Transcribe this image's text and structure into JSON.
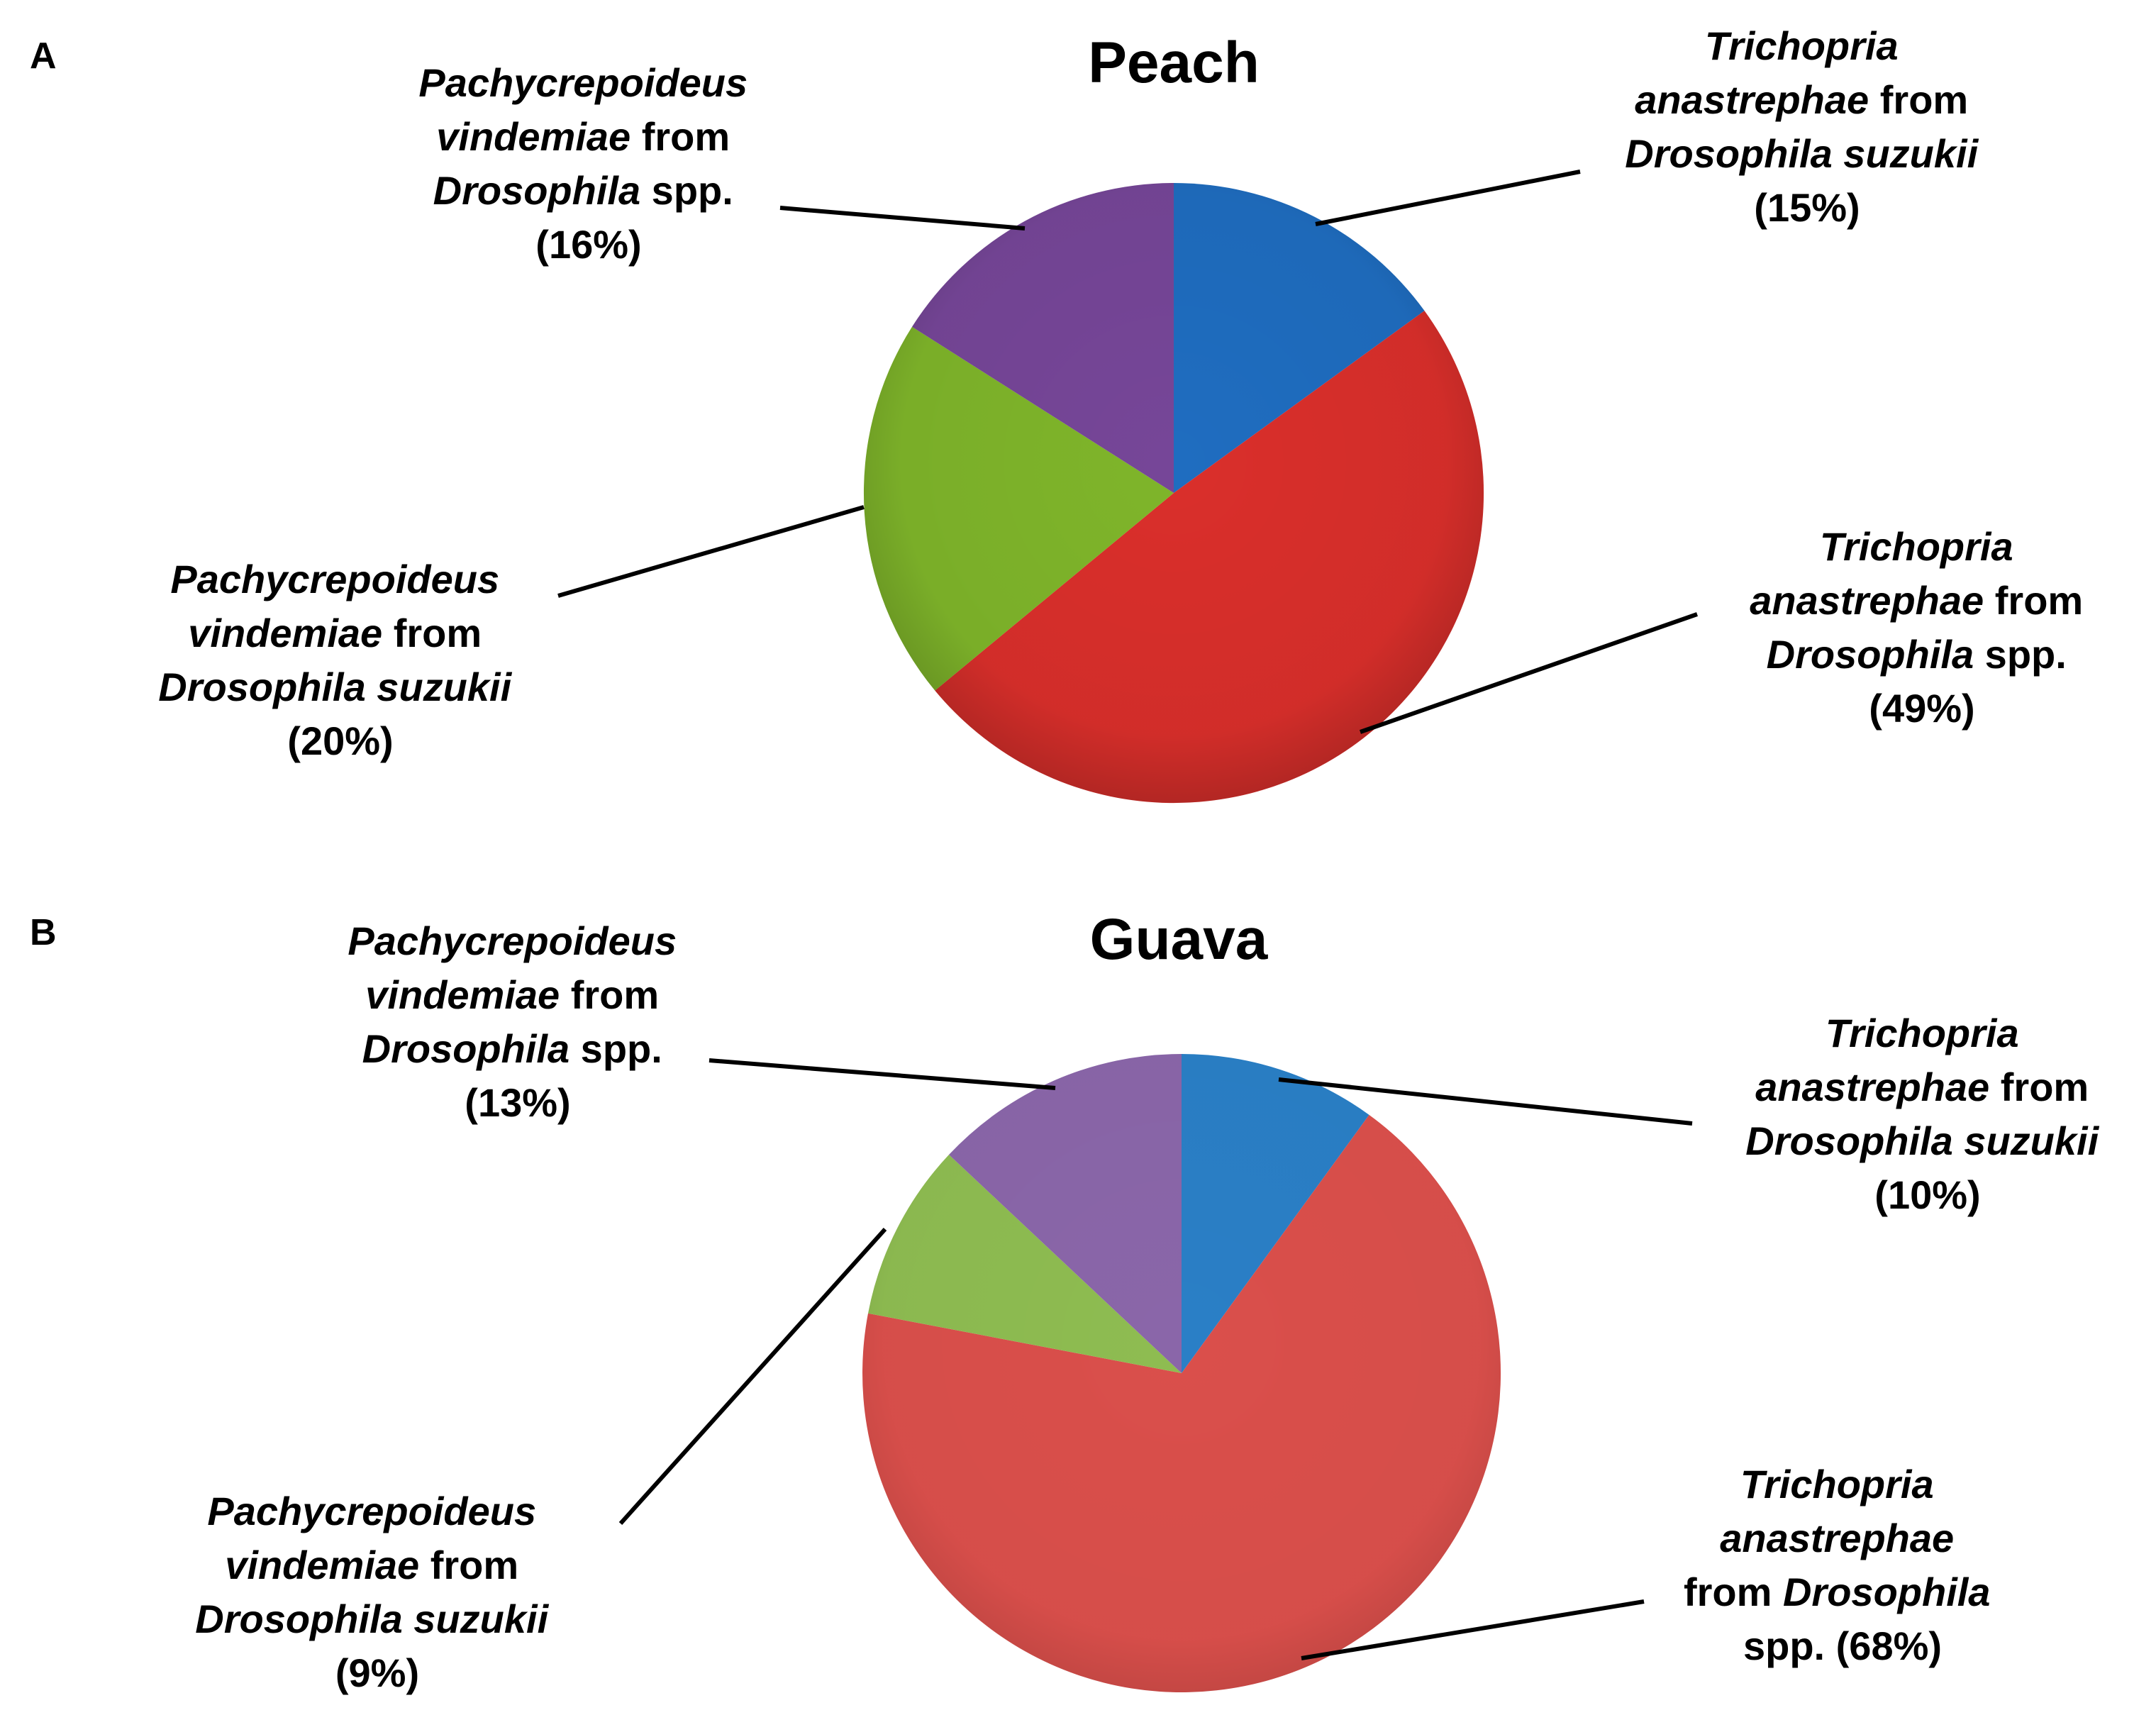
{
  "chart_data": [
    {
      "type": "pie",
      "panel": "A",
      "title": "Peach",
      "colors": [
        "#1f6dc0",
        "#da2f2b",
        "#7fb52a",
        "#764698"
      ],
      "slices": [
        {
          "runs": [
            {
              "t": "Trichopria",
              "i": true
            },
            {
              "t": "anastrephae",
              "i": true
            },
            {
              "t": " from",
              "i": false
            },
            {
              "t": "Drosophila suzukii",
              "i": true
            },
            {
              "t": "(15%)",
              "i": false
            }
          ],
          "value": 15
        },
        {
          "runs": [
            {
              "t": "Trichopria",
              "i": true
            },
            {
              "t": "anastrephae",
              "i": true
            },
            {
              "t": " from",
              "i": false
            },
            {
              "t": "Drosophila",
              "i": true
            },
            {
              "t": " spp.",
              "i": false
            },
            {
              "t": "(49%)",
              "i": false
            }
          ],
          "value": 49
        },
        {
          "runs": [
            {
              "t": "Pachycrepoideus",
              "i": true
            },
            {
              "t": "vindemiae",
              "i": true
            },
            {
              "t": " from",
              "i": false
            },
            {
              "t": "Drosophila suzukii",
              "i": true
            },
            {
              "t": "(20%)",
              "i": false
            }
          ],
          "value": 20
        },
        {
          "runs": [
            {
              "t": "Pachycrepoideus",
              "i": true
            },
            {
              "t": "vindemiae",
              "i": true
            },
            {
              "t": " from",
              "i": false
            },
            {
              "t": "Drosophila",
              "i": true
            },
            {
              "t": " spp.",
              "i": false
            },
            {
              "t": "(16%)",
              "i": false
            }
          ],
          "value": 16
        }
      ]
    },
    {
      "type": "pie",
      "panel": "B",
      "title": "Guava",
      "colors": [
        "#2a7fc6",
        "#da4f4b",
        "#8ebc51",
        "#8a66a9"
      ],
      "slices": [
        {
          "runs": [
            {
              "t": "Trichopria",
              "i": true
            },
            {
              "t": "anastrephae",
              "i": true
            },
            {
              "t": " from",
              "i": false
            },
            {
              "t": "Drosophila suzukii",
              "i": true
            },
            {
              "t": "(10%)",
              "i": false
            }
          ],
          "value": 10
        },
        {
          "runs": [
            {
              "t": "Trichopria",
              "i": true
            },
            {
              "t": "anastrephae",
              "i": true
            },
            {
              "t": "from ",
              "i": false
            },
            {
              "t": "Drosophila",
              "i": true
            },
            {
              "t": "spp. (68%)",
              "i": false
            }
          ],
          "value": 68
        },
        {
          "runs": [
            {
              "t": "Pachycrepoideus",
              "i": true
            },
            {
              "t": "vindemiae",
              "i": true
            },
            {
              "t": " from",
              "i": false
            },
            {
              "t": "Drosophila suzukii",
              "i": true
            },
            {
              "t": "(9%)",
              "i": false
            }
          ],
          "value": 9
        },
        {
          "runs": [
            {
              "t": "Pachycrepoideus",
              "i": true
            },
            {
              "t": "vindemiae",
              "i": true
            },
            {
              "t": " from",
              "i": false
            },
            {
              "t": "Drosophila",
              "i": true
            },
            {
              "t": " spp.",
              "i": false
            },
            {
              "t": "(13%)",
              "i": false
            }
          ],
          "value": 13
        }
      ]
    }
  ]
}
